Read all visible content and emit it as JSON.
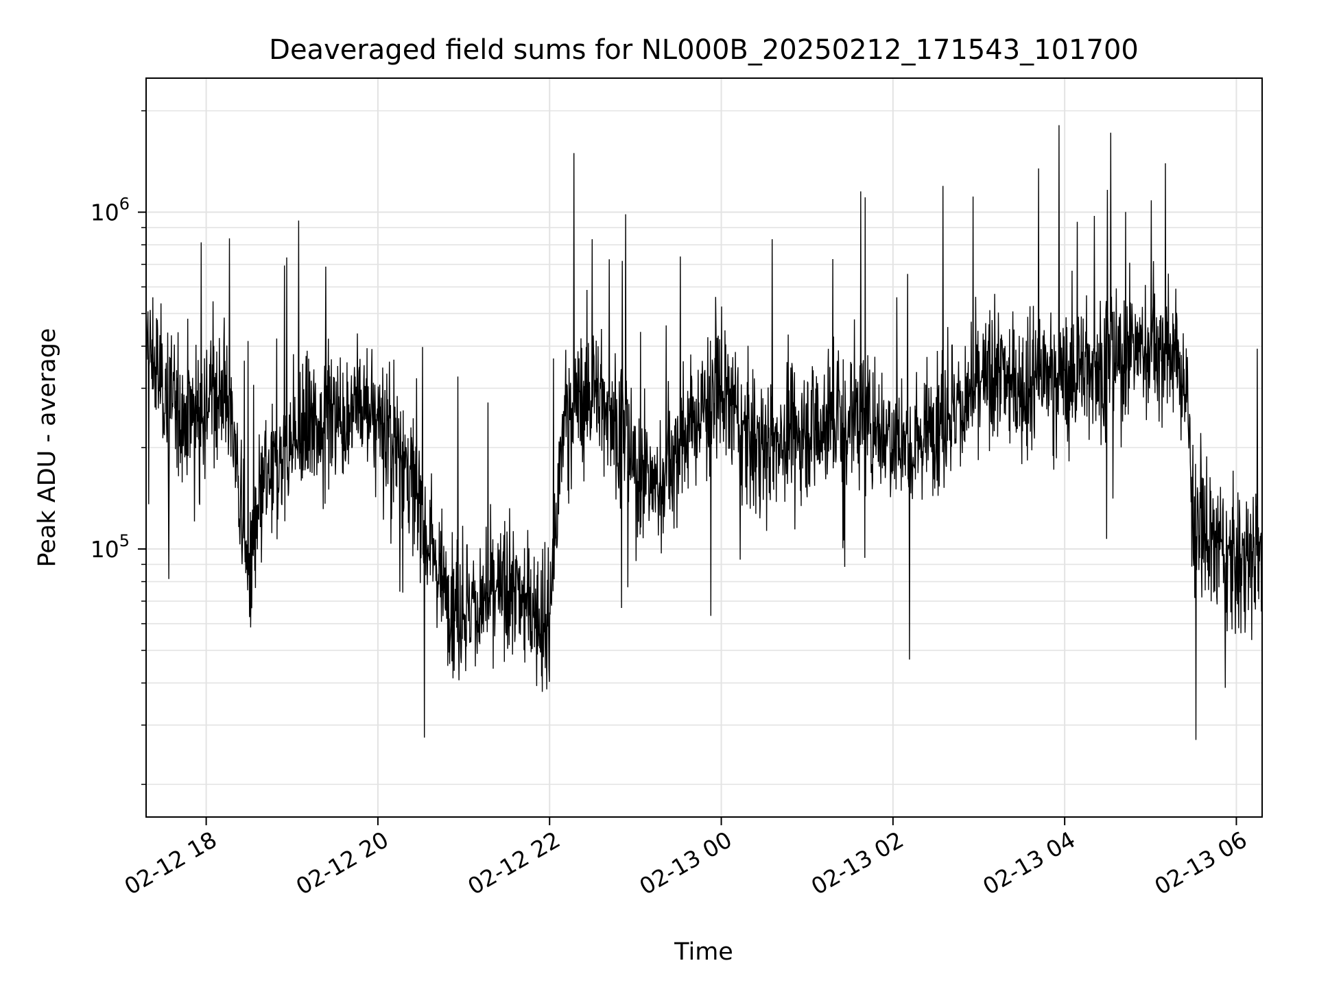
{
  "chart_data": {
    "type": "line",
    "title": "Deaveraged field sums for NL000B_20250212_171543_101700",
    "xlabel": "Time",
    "ylabel": "Peak ADU - average",
    "y_scale": "log",
    "xlim": [
      "2025-02-12 17:18",
      "2025-02-13 06:18"
    ],
    "ylim": [
      16000,
      2500000
    ],
    "x_ticks": [
      "02-12 18",
      "02-12 20",
      "02-12 22",
      "02-13 00",
      "02-13 02",
      "02-13 04",
      "02-13 06"
    ],
    "y_ticks": [
      {
        "base": "10",
        "exp": "5",
        "value": 100000
      },
      {
        "base": "10",
        "exp": "6",
        "value": 1000000
      }
    ],
    "grid": true,
    "line_color": "#000000",
    "series": [
      {
        "x": [
          "2025-02-12 17:18",
          "2025-02-12 17:30",
          "2025-02-12 17:45",
          "2025-02-12 18:00",
          "2025-02-12 18:15",
          "2025-02-12 18:30",
          "2025-02-12 18:40",
          "2025-02-12 18:50",
          "2025-02-12 19:00",
          "2025-02-12 19:15",
          "2025-02-12 19:30",
          "2025-02-12 19:45",
          "2025-02-12 20:00",
          "2025-02-12 20:15",
          "2025-02-12 20:30",
          "2025-02-12 20:45",
          "2025-02-12 21:00",
          "2025-02-12 21:15",
          "2025-02-12 21:30",
          "2025-02-12 21:45",
          "2025-02-12 22:00",
          "2025-02-12 22:10",
          "2025-02-12 22:30",
          "2025-02-12 22:45",
          "2025-02-12 23:00",
          "2025-02-12 23:15",
          "2025-02-12 23:30",
          "2025-02-12 23:45",
          "2025-02-13 00:00",
          "2025-02-13 00:15",
          "2025-02-13 00:30",
          "2025-02-13 00:45",
          "2025-02-13 01:00",
          "2025-02-13 01:15",
          "2025-02-13 01:30",
          "2025-02-13 01:45",
          "2025-02-13 02:00",
          "2025-02-13 02:15",
          "2025-02-13 02:30",
          "2025-02-13 02:45",
          "2025-02-13 03:00",
          "2025-02-13 03:15",
          "2025-02-13 03:30",
          "2025-02-13 03:45",
          "2025-02-13 04:00",
          "2025-02-13 04:15",
          "2025-02-13 04:30",
          "2025-02-13 04:45",
          "2025-02-13 05:00",
          "2025-02-13 05:15",
          "2025-02-13 05:25",
          "2025-02-13 05:30",
          "2025-02-13 05:45",
          "2025-02-13 06:00",
          "2025-02-13 06:18"
        ],
        "y": [
          400000,
          300000,
          250000,
          280000,
          300000,
          80000,
          150000,
          180000,
          200000,
          230000,
          250000,
          260000,
          250000,
          200000,
          130000,
          80000,
          65000,
          70000,
          75000,
          70000,
          60000,
          250000,
          300000,
          250000,
          170000,
          150000,
          200000,
          250000,
          300000,
          220000,
          200000,
          220000,
          230000,
          240000,
          250000,
          240000,
          220000,
          200000,
          250000,
          260000,
          300000,
          330000,
          300000,
          330000,
          320000,
          350000,
          350000,
          380000,
          400000,
          380000,
          300000,
          120000,
          100000,
          90000,
          100000
        ]
      }
    ]
  }
}
